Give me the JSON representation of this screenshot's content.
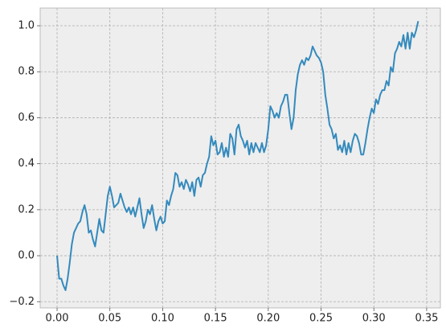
{
  "chart_data": {
    "type": "line",
    "x": [
      0.0,
      0.002,
      0.004,
      0.006,
      0.008,
      0.01,
      0.012,
      0.014,
      0.016,
      0.018,
      0.02,
      0.022,
      0.024,
      0.026,
      0.028,
      0.03,
      0.032,
      0.034,
      0.036,
      0.038,
      0.04,
      0.042,
      0.044,
      0.046,
      0.048,
      0.05,
      0.052,
      0.054,
      0.056,
      0.058,
      0.06,
      0.062,
      0.064,
      0.066,
      0.068,
      0.07,
      0.072,
      0.074,
      0.076,
      0.078,
      0.08,
      0.082,
      0.084,
      0.086,
      0.088,
      0.09,
      0.092,
      0.094,
      0.096,
      0.098,
      0.1,
      0.102,
      0.104,
      0.106,
      0.108,
      0.11,
      0.112,
      0.114,
      0.116,
      0.118,
      0.12,
      0.122,
      0.124,
      0.126,
      0.128,
      0.13,
      0.132,
      0.134,
      0.136,
      0.138,
      0.14,
      0.142,
      0.144,
      0.146,
      0.148,
      0.15,
      0.152,
      0.154,
      0.156,
      0.158,
      0.16,
      0.162,
      0.164,
      0.166,
      0.168,
      0.17,
      0.172,
      0.174,
      0.176,
      0.178,
      0.18,
      0.182,
      0.184,
      0.186,
      0.188,
      0.19,
      0.192,
      0.194,
      0.196,
      0.198,
      0.2,
      0.202,
      0.204,
      0.206,
      0.208,
      0.21,
      0.212,
      0.214,
      0.216,
      0.218,
      0.22,
      0.222,
      0.224,
      0.226,
      0.228,
      0.23,
      0.232,
      0.234,
      0.236,
      0.238,
      0.24,
      0.242,
      0.244,
      0.246,
      0.248,
      0.25,
      0.252,
      0.254,
      0.256,
      0.258,
      0.26,
      0.262,
      0.264,
      0.266,
      0.268,
      0.27,
      0.272,
      0.274,
      0.276,
      0.278,
      0.28,
      0.282,
      0.284,
      0.286,
      0.288,
      0.29,
      0.292,
      0.294,
      0.296,
      0.298,
      0.3,
      0.302,
      0.304,
      0.306,
      0.308,
      0.31,
      0.312,
      0.314,
      0.316,
      0.318,
      0.32,
      0.322,
      0.324,
      0.326,
      0.328,
      0.33,
      0.332,
      0.334,
      0.336,
      0.338,
      0.34,
      0.342
    ],
    "values": [
      0.0,
      -0.1,
      -0.1,
      -0.13,
      -0.15,
      -0.1,
      -0.03,
      0.05,
      0.1,
      0.12,
      0.14,
      0.15,
      0.19,
      0.22,
      0.18,
      0.1,
      0.11,
      0.07,
      0.04,
      0.1,
      0.16,
      0.11,
      0.1,
      0.18,
      0.26,
      0.3,
      0.26,
      0.21,
      0.22,
      0.23,
      0.27,
      0.24,
      0.21,
      0.19,
      0.21,
      0.18,
      0.21,
      0.17,
      0.21,
      0.25,
      0.18,
      0.12,
      0.15,
      0.2,
      0.18,
      0.22,
      0.16,
      0.11,
      0.15,
      0.17,
      0.14,
      0.15,
      0.24,
      0.22,
      0.26,
      0.29,
      0.36,
      0.35,
      0.3,
      0.32,
      0.29,
      0.33,
      0.31,
      0.28,
      0.32,
      0.26,
      0.33,
      0.34,
      0.3,
      0.35,
      0.36,
      0.4,
      0.43,
      0.52,
      0.48,
      0.5,
      0.44,
      0.45,
      0.49,
      0.43,
      0.47,
      0.43,
      0.53,
      0.51,
      0.44,
      0.55,
      0.57,
      0.52,
      0.5,
      0.47,
      0.5,
      0.44,
      0.49,
      0.45,
      0.49,
      0.47,
      0.45,
      0.49,
      0.45,
      0.48,
      0.55,
      0.65,
      0.63,
      0.6,
      0.62,
      0.6,
      0.65,
      0.67,
      0.7,
      0.7,
      0.62,
      0.55,
      0.6,
      0.72,
      0.79,
      0.83,
      0.85,
      0.83,
      0.86,
      0.85,
      0.87,
      0.91,
      0.89,
      0.87,
      0.86,
      0.84,
      0.8,
      0.7,
      0.64,
      0.57,
      0.55,
      0.51,
      0.53,
      0.46,
      0.48,
      0.45,
      0.5,
      0.44,
      0.49,
      0.45,
      0.5,
      0.53,
      0.52,
      0.49,
      0.44,
      0.44,
      0.49,
      0.55,
      0.6,
      0.64,
      0.62,
      0.68,
      0.66,
      0.7,
      0.72,
      0.72,
      0.76,
      0.74,
      0.82,
      0.8,
      0.88,
      0.9,
      0.93,
      0.91,
      0.96,
      0.9,
      0.97,
      0.9,
      0.97,
      0.95,
      0.98,
      1.02
    ],
    "color": "#348abd",
    "xlim": [
      -0.016,
      0.363
    ],
    "ylim": [
      -0.227,
      1.077
    ],
    "xticks": [
      {
        "value": 0,
        "label": "0.00"
      },
      {
        "value": 0.05,
        "label": "0.05"
      },
      {
        "value": 0.1,
        "label": "0.10"
      },
      {
        "value": 0.15,
        "label": "0.15"
      },
      {
        "value": 0.2,
        "label": "0.20"
      },
      {
        "value": 0.25,
        "label": "0.25"
      },
      {
        "value": 0.3,
        "label": "0.30"
      },
      {
        "value": 0.35,
        "label": "0.35"
      }
    ],
    "yticks": [
      {
        "value": -0.2,
        "label": "−0.2"
      },
      {
        "value": 0,
        "label": "0.0"
      },
      0.2,
      0.4,
      0.6,
      0.8,
      {
        "value": 1,
        "label": "1.0"
      }
    ],
    "grid": true
  }
}
